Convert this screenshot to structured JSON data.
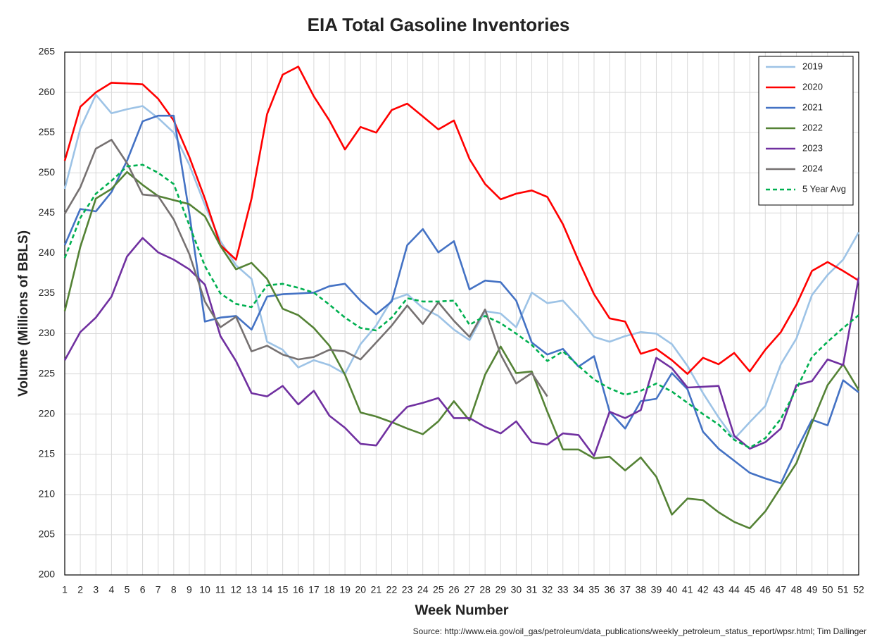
{
  "chart_data": {
    "type": "line",
    "title": "EIA Total Gasoline Inventories",
    "x_label": "Week Number",
    "y_label": "Volume (Millions of BBLS)",
    "source": "Source: http://www.eia.gov/oil_gas/petroleum/data_publications/weekly_petroleum_status_report/wpsr.html; Tim Dallinger",
    "x": [
      1,
      2,
      3,
      4,
      5,
      6,
      7,
      8,
      9,
      10,
      11,
      12,
      13,
      14,
      15,
      16,
      17,
      18,
      19,
      20,
      21,
      22,
      23,
      24,
      25,
      26,
      27,
      28,
      29,
      30,
      31,
      32,
      33,
      34,
      35,
      36,
      37,
      38,
      39,
      40,
      41,
      42,
      43,
      44,
      45,
      46,
      47,
      48,
      49,
      50,
      51,
      52
    ],
    "xlim": [
      1,
      52
    ],
    "xticks": [
      1,
      2,
      3,
      4,
      5,
      6,
      7,
      8,
      9,
      10,
      11,
      12,
      13,
      14,
      15,
      16,
      17,
      18,
      19,
      20,
      21,
      22,
      23,
      24,
      25,
      26,
      27,
      28,
      29,
      30,
      31,
      32,
      33,
      34,
      35,
      36,
      37,
      38,
      39,
      40,
      41,
      42,
      43,
      44,
      45,
      46,
      47,
      48,
      49,
      50,
      51,
      52
    ],
    "ylim": [
      200,
      265
    ],
    "yticks": [
      200,
      205,
      210,
      215,
      220,
      225,
      230,
      235,
      240,
      245,
      250,
      255,
      260,
      265
    ],
    "grid": true,
    "legend": "upper right",
    "series": [
      {
        "name": "2019",
        "color": "#9dc3e6",
        "values": [
          248,
          255.5,
          259.7,
          257.4,
          257.9,
          258.3,
          256.8,
          255,
          251,
          246,
          241.5,
          238.5,
          236.8,
          229,
          228,
          225.8,
          226.7,
          226.1,
          225,
          228.7,
          231,
          234.2,
          234.9,
          233.2,
          232.2,
          230.5,
          229.2,
          232.8,
          232.5,
          230.8,
          235.1,
          233.8,
          234.1,
          232,
          229.6,
          229,
          229.7,
          230.2,
          230,
          228.7,
          226,
          222.6,
          219.6,
          216.9,
          219,
          221,
          226.2,
          229.4,
          234.8,
          237.3,
          239.2,
          242.6
        ]
      },
      {
        "name": "2020",
        "color": "#ff0000",
        "values": [
          251.5,
          258.2,
          260,
          261.2,
          261.1,
          261,
          259.2,
          256.5,
          252,
          246.8,
          241,
          239.2,
          246.8,
          257.3,
          262.2,
          263.2,
          259.5,
          256.5,
          252.9,
          255.7,
          255,
          257.8,
          258.6,
          257,
          255.4,
          256.5,
          251.7,
          248.6,
          246.7,
          247.4,
          247.8,
          247,
          243.6,
          239.1,
          234.9,
          231.9,
          231.5,
          227.5,
          228.1,
          226.7,
          225,
          227,
          226.2,
          227.6,
          225.3,
          228,
          230.2,
          233.6,
          237.8,
          238.9,
          237.8,
          236.6
        ]
      },
      {
        "name": "2021",
        "color": "#4472c4",
        "values": [
          241,
          245.5,
          245.2,
          247.6,
          251.5,
          256.4,
          257.1,
          257.1,
          245,
          231.5,
          232,
          232.2,
          230.5,
          234.6,
          234.9,
          235,
          235.1,
          235.9,
          236.2,
          234.1,
          232.4,
          234,
          241,
          243,
          240.1,
          241.5,
          235.5,
          236.6,
          236.4,
          234.1,
          228.9,
          227.4,
          228.1,
          225.9,
          227.2,
          220.3,
          218.2,
          221.6,
          221.9,
          225.1,
          223.1,
          217.8,
          215.7,
          214.2,
          212.7,
          212,
          211.4,
          215.5,
          219.3,
          218.6,
          224.2,
          222.7
        ]
      },
      {
        "name": "2022",
        "color": "#548235",
        "values": [
          232.8,
          240.8,
          246.8,
          248,
          250.1,
          248.5,
          247.1,
          246.6,
          246.1,
          244.6,
          240.9,
          238,
          238.8,
          236.8,
          233.1,
          232.3,
          230.7,
          228.5,
          224.9,
          220.2,
          219.7,
          219,
          218.2,
          217.5,
          219.1,
          221.6,
          219.2,
          224.9,
          228.4,
          225.1,
          225.3,
          220.3,
          215.6,
          215.6,
          214.5,
          214.7,
          213,
          214.6,
          212.2,
          207.5,
          209.5,
          209.3,
          207.8,
          206.6,
          205.8,
          207.9,
          210.9,
          213.9,
          218.9,
          223.6,
          226.2,
          223
        ]
      },
      {
        "name": "2023",
        "color": "#7030a0",
        "values": [
          226.7,
          230.2,
          232,
          234.6,
          239.6,
          241.9,
          240.1,
          239.2,
          238,
          236.1,
          229.7,
          226.6,
          222.6,
          222.2,
          223.5,
          221.2,
          222.9,
          219.8,
          218.3,
          216.3,
          216.1,
          218.9,
          220.9,
          221.4,
          222,
          219.5,
          219.5,
          218.4,
          217.6,
          219.1,
          216.5,
          216.2,
          217.6,
          217.4,
          214.8,
          220.3,
          219.5,
          220.5,
          227,
          225.7,
          223.3,
          223.4,
          223.5,
          217.3,
          215.7,
          216.5,
          218.2,
          223.6,
          224.1,
          226.8,
          226.1,
          237
        ]
      },
      {
        "name": "2024",
        "color": "#767171",
        "values": [
          244.9,
          248.2,
          253,
          254.1,
          251.2,
          247.3,
          247.1,
          244.2,
          239.9,
          234,
          230.8,
          232.1,
          227.8,
          228.5,
          227.4,
          226.8,
          227.1,
          228,
          227.8,
          226.8,
          228.9,
          231,
          233.5,
          231.2,
          233.9,
          231.6,
          229.6,
          233,
          227.4,
          223.8,
          225.1,
          222.2,
          null,
          null,
          null,
          null,
          null,
          null,
          null,
          null,
          null,
          null,
          null,
          null,
          null,
          null,
          null,
          null,
          null,
          null,
          null,
          null
        ]
      },
      {
        "name": "5 Year Avg",
        "color": "#00b050",
        "dashed": true,
        "values": [
          239.4,
          244.4,
          247.4,
          249,
          250.8,
          251,
          250,
          248.6,
          243.5,
          238.4,
          235,
          233.7,
          233.3,
          236,
          236.2,
          235.7,
          235.1,
          233.6,
          232,
          230.7,
          230.4,
          232,
          234.4,
          234,
          234,
          234.1,
          231.1,
          232.2,
          231.3,
          230,
          228.6,
          226.6,
          227.8,
          226,
          224.3,
          223.2,
          222.4,
          222.9,
          223.8,
          222.8,
          221.4,
          220,
          218.7,
          216.8,
          215.8,
          217,
          219.4,
          223.1,
          227.1,
          229,
          230.7,
          232.3
        ]
      }
    ]
  }
}
